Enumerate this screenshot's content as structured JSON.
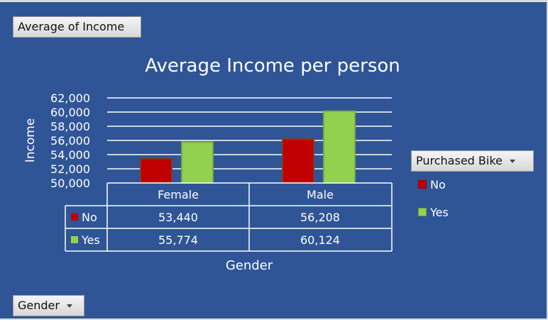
{
  "value_field_button": {
    "label": "Average of Income"
  },
  "legend_field_button": {
    "label": "Purchased Bike"
  },
  "axis_field_button": {
    "label": "Gender"
  },
  "colors": {
    "background": "#2f5597",
    "series_no": "#c00000",
    "series_yes": "#92d050",
    "series_no_border": "#7f3f1f",
    "series_yes_border": "#7aa83f"
  },
  "chart_data": {
    "type": "bar",
    "title": "Average Income per person",
    "xlabel": "Gender",
    "ylabel": "Income",
    "categories": [
      "Female",
      "Male"
    ],
    "series": [
      {
        "name": "No",
        "values": [
          53440,
          56208
        ],
        "labels": [
          "53,440",
          "56,208"
        ],
        "color": "#c00000"
      },
      {
        "name": "Yes",
        "values": [
          55774,
          60124
        ],
        "labels": [
          "55,774",
          "60,124"
        ],
        "color": "#92d050"
      }
    ],
    "ylim": [
      50000,
      62000
    ],
    "yticks": [
      "50,000",
      "52,000",
      "54,000",
      "56,000",
      "58,000",
      "60,000",
      "62,000"
    ],
    "grid": true,
    "legend_position": "right",
    "data_table": true
  }
}
